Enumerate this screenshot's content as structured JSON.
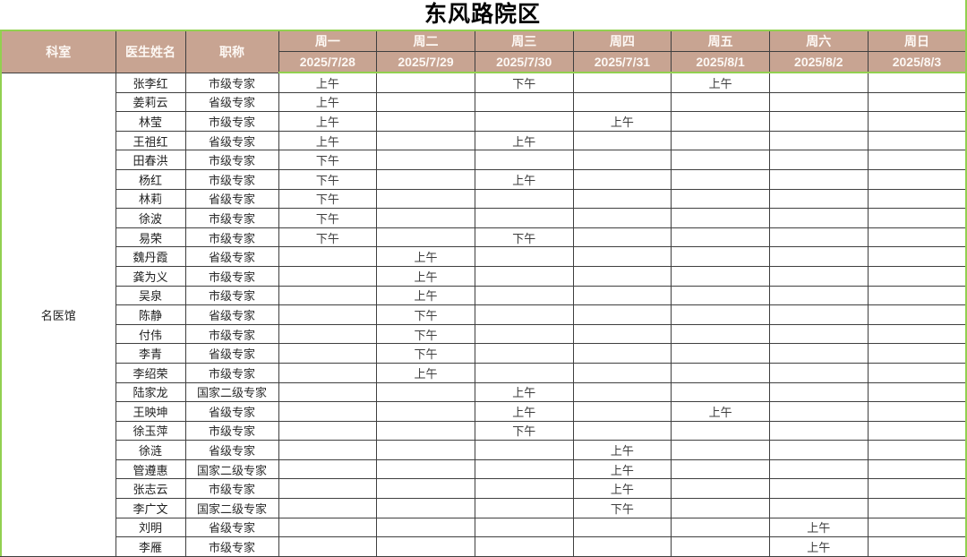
{
  "title": "东风路院区",
  "colors": {
    "header_bg": "#C8A492",
    "accent_green": "#92D050",
    "grid_line": "#3F3F3F"
  },
  "table": {
    "department": "名医馆",
    "headers": {
      "department": "科室",
      "doctor": "医生姓名",
      "rank": "职称",
      "days": [
        {
          "week": "周一",
          "date": "2025/7/28"
        },
        {
          "week": "周二",
          "date": "2025/7/29"
        },
        {
          "week": "周三",
          "date": "2025/7/30"
        },
        {
          "week": "周四",
          "date": "2025/7/31"
        },
        {
          "week": "周五",
          "date": "2025/8/1"
        },
        {
          "week": "周六",
          "date": "2025/8/2"
        },
        {
          "week": "周日",
          "date": "2025/8/3"
        }
      ]
    },
    "rows": [
      {
        "name": "张李红",
        "rank": "市级专家",
        "schedule": [
          "上午",
          "",
          "下午",
          "",
          "上午",
          "",
          ""
        ]
      },
      {
        "name": "姜莉云",
        "rank": "省级专家",
        "schedule": [
          "上午",
          "",
          "",
          "",
          "",
          "",
          ""
        ]
      },
      {
        "name": "林莹",
        "rank": "市级专家",
        "schedule": [
          "上午",
          "",
          "",
          "上午",
          "",
          "",
          ""
        ]
      },
      {
        "name": "王祖红",
        "rank": "省级专家",
        "schedule": [
          "上午",
          "",
          "上午",
          "",
          "",
          "",
          ""
        ]
      },
      {
        "name": "田春洪",
        "rank": "市级专家",
        "schedule": [
          "下午",
          "",
          "",
          "",
          "",
          "",
          ""
        ]
      },
      {
        "name": "杨红",
        "rank": "市级专家",
        "schedule": [
          "下午",
          "",
          "上午",
          "",
          "",
          "",
          ""
        ]
      },
      {
        "name": "林莉",
        "rank": "省级专家",
        "schedule": [
          "下午",
          "",
          "",
          "",
          "",
          "",
          ""
        ]
      },
      {
        "name": "徐波",
        "rank": "市级专家",
        "schedule": [
          "下午",
          "",
          "",
          "",
          "",
          "",
          ""
        ]
      },
      {
        "name": "易荣",
        "rank": "市级专家",
        "schedule": [
          "下午",
          "",
          "下午",
          "",
          "",
          "",
          ""
        ]
      },
      {
        "name": "魏丹霞",
        "rank": "省级专家",
        "schedule": [
          "",
          "上午",
          "",
          "",
          "",
          "",
          ""
        ]
      },
      {
        "name": "龚为义",
        "rank": "市级专家",
        "schedule": [
          "",
          "上午",
          "",
          "",
          "",
          "",
          ""
        ]
      },
      {
        "name": "吴泉",
        "rank": "市级专家",
        "schedule": [
          "",
          "上午",
          "",
          "",
          "",
          "",
          ""
        ]
      },
      {
        "name": "陈静",
        "rank": "省级专家",
        "schedule": [
          "",
          "下午",
          "",
          "",
          "",
          "",
          ""
        ]
      },
      {
        "name": "付伟",
        "rank": "市级专家",
        "schedule": [
          "",
          "下午",
          "",
          "",
          "",
          "",
          ""
        ]
      },
      {
        "name": "李青",
        "rank": "省级专家",
        "schedule": [
          "",
          "下午",
          "",
          "",
          "",
          "",
          ""
        ]
      },
      {
        "name": "李绍荣",
        "rank": "市级专家",
        "schedule": [
          "",
          "上午",
          "",
          "",
          "",
          "",
          ""
        ]
      },
      {
        "name": "陆家龙",
        "rank": "国家二级专家",
        "schedule": [
          "",
          "",
          "上午",
          "",
          "",
          "",
          ""
        ]
      },
      {
        "name": "王映坤",
        "rank": "省级专家",
        "schedule": [
          "",
          "",
          "上午",
          "",
          "上午",
          "",
          ""
        ]
      },
      {
        "name": "徐玉萍",
        "rank": "市级专家",
        "schedule": [
          "",
          "",
          "下午",
          "",
          "",
          "",
          ""
        ]
      },
      {
        "name": "徐涟",
        "rank": "省级专家",
        "schedule": [
          "",
          "",
          "",
          "上午",
          "",
          "",
          ""
        ]
      },
      {
        "name": "管遵惠",
        "rank": "国家二级专家",
        "schedule": [
          "",
          "",
          "",
          "上午",
          "",
          "",
          ""
        ]
      },
      {
        "name": "张志云",
        "rank": "市级专家",
        "schedule": [
          "",
          "",
          "",
          "上午",
          "",
          "",
          ""
        ]
      },
      {
        "name": "李广文",
        "rank": "国家二级专家",
        "schedule": [
          "",
          "",
          "",
          "下午",
          "",
          "",
          ""
        ]
      },
      {
        "name": "刘明",
        "rank": "省级专家",
        "schedule": [
          "",
          "",
          "",
          "",
          "",
          "上午",
          ""
        ]
      },
      {
        "name": "李雁",
        "rank": "市级专家",
        "schedule": [
          "",
          "",
          "",
          "",
          "",
          "上午",
          ""
        ]
      }
    ]
  }
}
